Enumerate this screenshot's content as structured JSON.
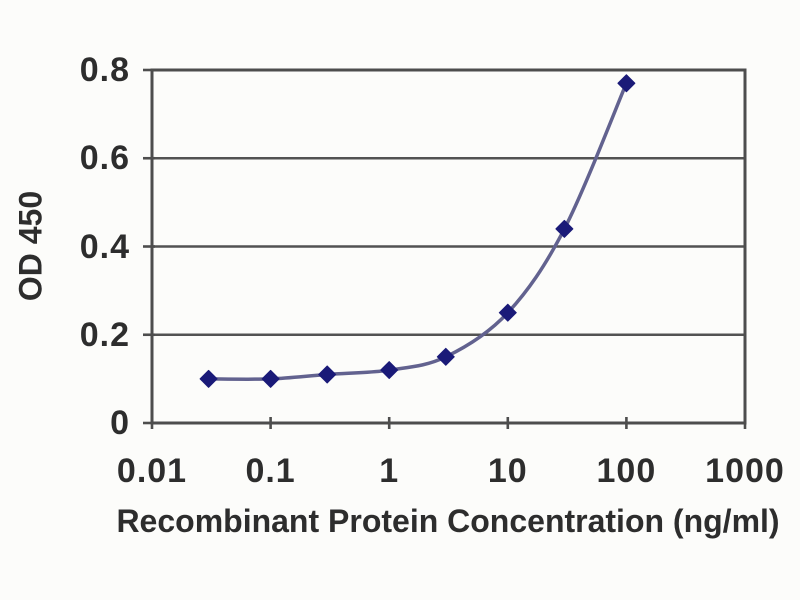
{
  "chart_data": {
    "type": "line",
    "title": "",
    "xlabel": "Recombinant Protein Concentration (ng/ml)",
    "ylabel": "OD 450",
    "x_scale": "log",
    "xlim": [
      0.01,
      1000
    ],
    "ylim": [
      0,
      0.8
    ],
    "x": [
      0.03,
      0.1,
      0.3,
      1,
      3,
      10,
      30,
      100
    ],
    "y": [
      0.1,
      0.1,
      0.11,
      0.12,
      0.15,
      0.25,
      0.44,
      0.77
    ],
    "x_ticks": [
      "0.01",
      "0.1",
      "1",
      "10",
      "100",
      "1000"
    ],
    "x_tick_values": [
      0.01,
      0.1,
      1,
      10,
      100,
      1000
    ],
    "y_ticks": [
      "0",
      "0.2",
      "0.4",
      "0.6",
      "0.8"
    ],
    "y_tick_values": [
      0,
      0.2,
      0.4,
      0.6,
      0.8
    ],
    "gridlines": "horizontal",
    "legend": "none",
    "marker": "diamond",
    "smooth": true
  },
  "colors": {
    "background": "#fcfcfa",
    "text": "#2d2d2d",
    "axis": "#4d4d4d",
    "gridline": "#525252",
    "line": "#62628f",
    "marker": "#1a1a78"
  }
}
